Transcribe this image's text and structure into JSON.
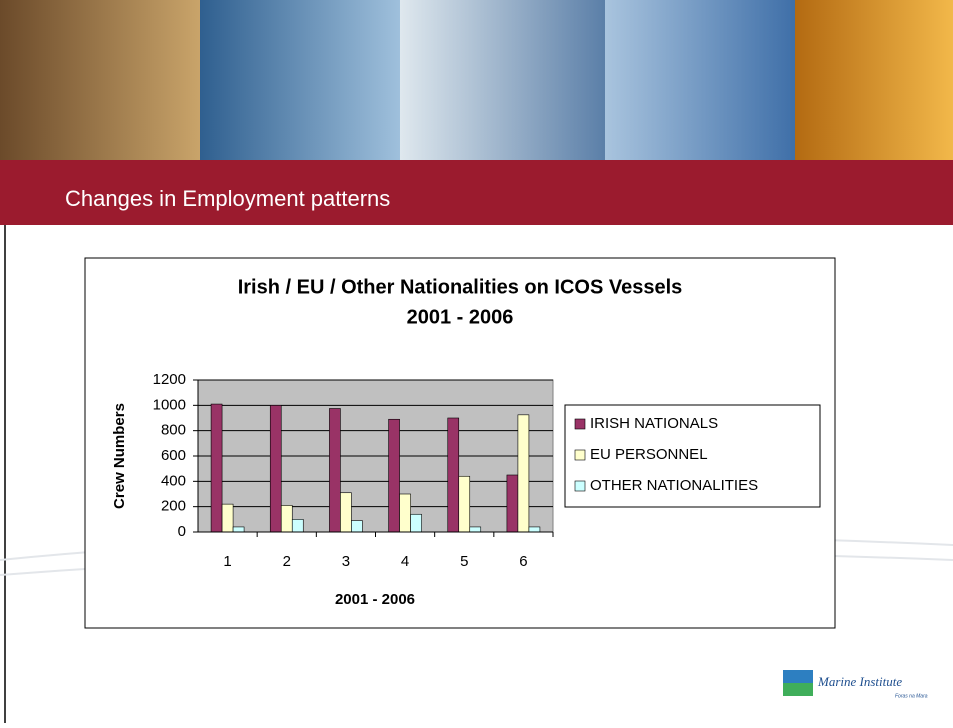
{
  "header": {
    "title": "Changes in Employment patterns"
  },
  "logo": {
    "name": "Marine Institute",
    "tagline": "Foras na Mara"
  },
  "chart_data": {
    "type": "bar",
    "title": "Irish / EU / Other Nationalities on ICOS Vessels",
    "subtitle": "2001 - 2006",
    "x_label": "2001 - 2006",
    "y_label": "Crew Numbers",
    "categories": [
      "1",
      "2",
      "3",
      "4",
      "5",
      "6"
    ],
    "series": [
      {
        "name": "IRISH NATIONALS",
        "color": "#993366",
        "values": [
          1010,
          1000,
          975,
          890,
          900,
          450
        ]
      },
      {
        "name": "EU PERSONNEL",
        "color": "#ffffcc",
        "values": [
          220,
          210,
          310,
          300,
          440,
          925
        ]
      },
      {
        "name": "OTHER NATIONALITIES",
        "color": "#ccffff",
        "values": [
          40,
          100,
          90,
          140,
          40,
          40
        ]
      }
    ],
    "ylim": [
      0,
      1200
    ],
    "yticks": [
      0,
      200,
      400,
      600,
      800,
      1000,
      1200
    ],
    "grid": true,
    "legend": "right"
  }
}
